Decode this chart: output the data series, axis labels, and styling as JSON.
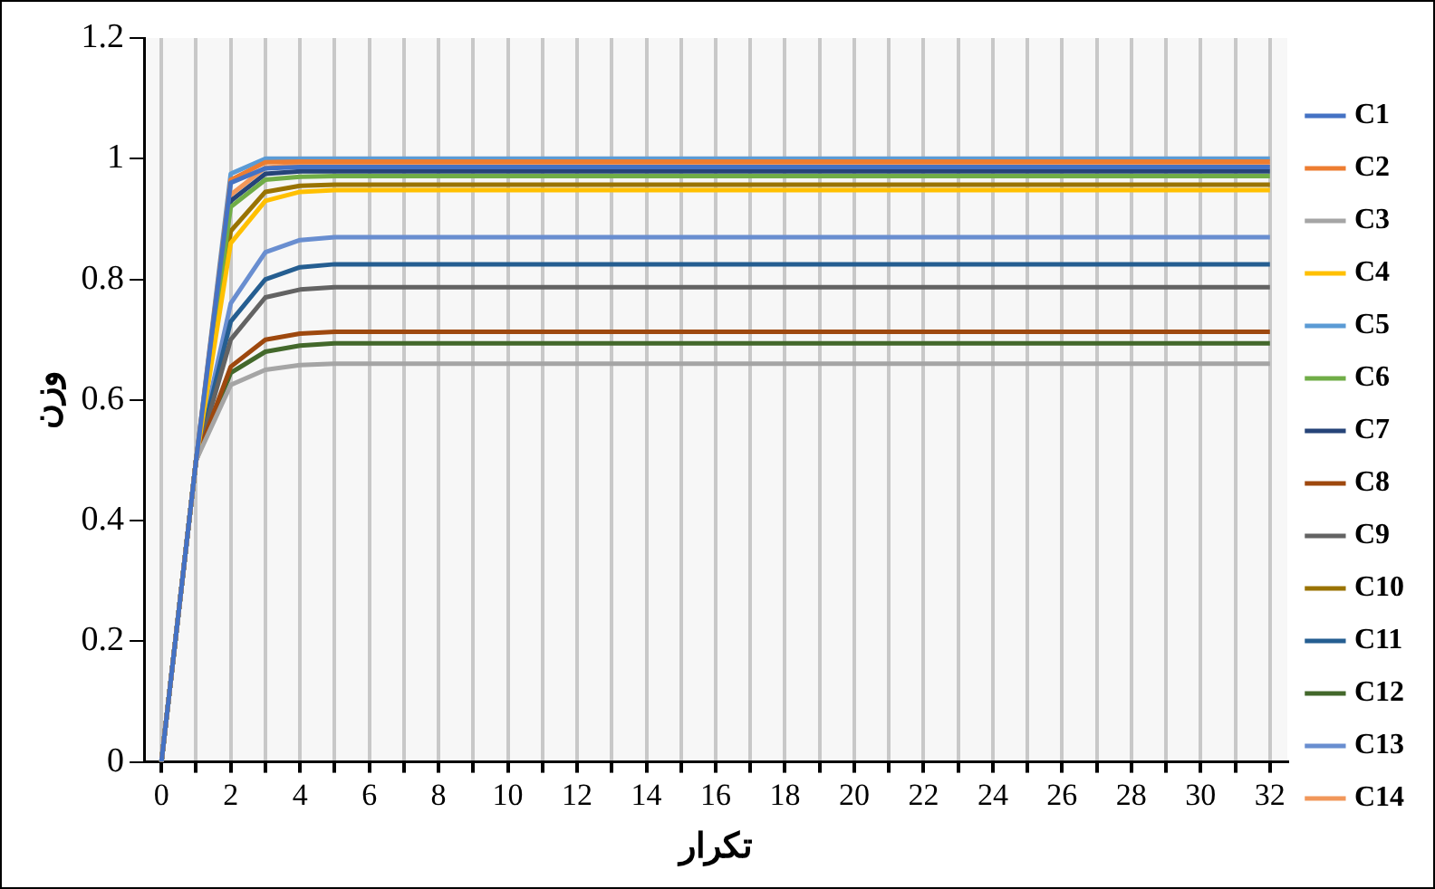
{
  "chart_data": {
    "type": "line",
    "xlabel": "تکرار",
    "ylabel": "وزن",
    "x": [
      0,
      1,
      2,
      3,
      4,
      5,
      6,
      7,
      8,
      9,
      10,
      11,
      12,
      13,
      14,
      15,
      16,
      17,
      18,
      19,
      20,
      21,
      22,
      23,
      24,
      25,
      26,
      27,
      28,
      29,
      30,
      31,
      32
    ],
    "xlim": [
      -0.5,
      32.5
    ],
    "xticks": [
      0,
      {
        "value": 1,
        "label": null
      },
      2,
      {
        "value": 3,
        "label": null
      },
      4,
      {
        "value": 5,
        "label": null
      },
      6,
      {
        "value": 7,
        "label": null
      },
      8,
      {
        "value": 9,
        "label": null
      },
      10,
      {
        "value": 11,
        "label": null
      },
      12,
      {
        "value": 13,
        "label": null
      },
      14,
      {
        "value": 15,
        "label": null
      },
      16,
      {
        "value": 17,
        "label": null
      },
      18,
      {
        "value": 19,
        "label": null
      },
      20,
      {
        "value": 21,
        "label": null
      },
      22,
      {
        "value": 23,
        "label": null
      },
      24,
      {
        "value": 25,
        "label": null
      },
      26,
      {
        "value": 27,
        "label": null
      },
      28,
      {
        "value": 29,
        "label": null
      },
      30,
      {
        "value": 31,
        "label": null
      },
      32
    ],
    "ylim": [
      0,
      1.2
    ],
    "yticks": [
      0,
      0.2,
      0.4,
      0.6,
      0.8,
      1,
      1.2
    ],
    "grid": "x",
    "legend": "right",
    "marker": "none",
    "line_style": "solid",
    "series": [
      {
        "name": "C1",
        "color": "#4472c4",
        "values": [
          0,
          0.5,
          0.96,
          0.984,
          0.986,
          0.986,
          0.986,
          0.986,
          0.986,
          0.986,
          0.986,
          0.986,
          0.986,
          0.986,
          0.986,
          0.986,
          0.986,
          0.986,
          0.986,
          0.986,
          0.986,
          0.986,
          0.986,
          0.986,
          0.986,
          0.986,
          0.986,
          0.986,
          0.986,
          0.986,
          0.986,
          0.986,
          0.986
        ]
      },
      {
        "name": "C2",
        "color": "#ed7d31",
        "values": [
          0,
          0.5,
          0.965,
          0.994,
          0.995,
          0.995,
          0.995,
          0.995,
          0.995,
          0.995,
          0.995,
          0.995,
          0.995,
          0.995,
          0.995,
          0.995,
          0.995,
          0.995,
          0.995,
          0.995,
          0.995,
          0.995,
          0.995,
          0.995,
          0.995,
          0.995,
          0.995,
          0.995,
          0.995,
          0.995,
          0.995,
          0.995,
          0.995
        ]
      },
      {
        "name": "C3",
        "color": "#a5a5a5",
        "values": [
          0,
          0.5,
          0.625,
          0.65,
          0.658,
          0.66,
          0.66,
          0.66,
          0.66,
          0.66,
          0.66,
          0.66,
          0.66,
          0.66,
          0.66,
          0.66,
          0.66,
          0.66,
          0.66,
          0.66,
          0.66,
          0.66,
          0.66,
          0.66,
          0.66,
          0.66,
          0.66,
          0.66,
          0.66,
          0.66,
          0.66,
          0.66,
          0.66
        ]
      },
      {
        "name": "C4",
        "color": "#ffc000",
        "values": [
          0,
          0.5,
          0.86,
          0.93,
          0.945,
          0.948,
          0.948,
          0.948,
          0.948,
          0.948,
          0.948,
          0.948,
          0.948,
          0.948,
          0.948,
          0.948,
          0.948,
          0.948,
          0.948,
          0.948,
          0.948,
          0.948,
          0.948,
          0.948,
          0.948,
          0.948,
          0.948,
          0.948,
          0.948,
          0.948,
          0.948,
          0.948,
          0.948
        ]
      },
      {
        "name": "C5",
        "color": "#5b9bd5",
        "values": [
          0,
          0.5,
          0.975,
          1,
          1,
          1,
          1,
          1,
          1,
          1,
          1,
          1,
          1,
          1,
          1,
          1,
          1,
          1,
          1,
          1,
          1,
          1,
          1,
          1,
          1,
          1,
          1,
          1,
          1,
          1,
          1,
          1,
          1
        ]
      },
      {
        "name": "C6",
        "color": "#70ad47",
        "values": [
          0,
          0.5,
          0.92,
          0.965,
          0.97,
          0.971,
          0.971,
          0.971,
          0.971,
          0.971,
          0.971,
          0.971,
          0.971,
          0.971,
          0.971,
          0.971,
          0.971,
          0.971,
          0.971,
          0.971,
          0.971,
          0.971,
          0.971,
          0.971,
          0.971,
          0.971,
          0.971,
          0.971,
          0.971,
          0.971,
          0.971,
          0.971,
          0.971
        ]
      },
      {
        "name": "C7",
        "color": "#264478",
        "values": [
          0,
          0.5,
          0.93,
          0.975,
          0.979,
          0.979,
          0.979,
          0.979,
          0.979,
          0.979,
          0.979,
          0.979,
          0.979,
          0.979,
          0.979,
          0.979,
          0.979,
          0.979,
          0.979,
          0.979,
          0.979,
          0.979,
          0.979,
          0.979,
          0.979,
          0.979,
          0.979,
          0.979,
          0.979,
          0.979,
          0.979,
          0.979,
          0.979
        ]
      },
      {
        "name": "C8",
        "color": "#9e480e",
        "values": [
          0,
          0.5,
          0.655,
          0.7,
          0.71,
          0.713,
          0.713,
          0.713,
          0.713,
          0.713,
          0.713,
          0.713,
          0.713,
          0.713,
          0.713,
          0.713,
          0.713,
          0.713,
          0.713,
          0.713,
          0.713,
          0.713,
          0.713,
          0.713,
          0.713,
          0.713,
          0.713,
          0.713,
          0.713,
          0.713,
          0.713,
          0.713,
          0.713
        ]
      },
      {
        "name": "C9",
        "color": "#636363",
        "values": [
          0,
          0.5,
          0.7,
          0.77,
          0.783,
          0.787,
          0.787,
          0.787,
          0.787,
          0.787,
          0.787,
          0.787,
          0.787,
          0.787,
          0.787,
          0.787,
          0.787,
          0.787,
          0.787,
          0.787,
          0.787,
          0.787,
          0.787,
          0.787,
          0.787,
          0.787,
          0.787,
          0.787,
          0.787,
          0.787,
          0.787,
          0.787,
          0.787
        ]
      },
      {
        "name": "C10",
        "color": "#997300",
        "values": [
          0,
          0.5,
          0.88,
          0.945,
          0.955,
          0.957,
          0.957,
          0.957,
          0.957,
          0.957,
          0.957,
          0.957,
          0.957,
          0.957,
          0.957,
          0.957,
          0.957,
          0.957,
          0.957,
          0.957,
          0.957,
          0.957,
          0.957,
          0.957,
          0.957,
          0.957,
          0.957,
          0.957,
          0.957,
          0.957,
          0.957,
          0.957,
          0.957
        ]
      },
      {
        "name": "C11",
        "color": "#255e91",
        "values": [
          0,
          0.5,
          0.73,
          0.8,
          0.82,
          0.825,
          0.825,
          0.825,
          0.825,
          0.825,
          0.825,
          0.825,
          0.825,
          0.825,
          0.825,
          0.825,
          0.825,
          0.825,
          0.825,
          0.825,
          0.825,
          0.825,
          0.825,
          0.825,
          0.825,
          0.825,
          0.825,
          0.825,
          0.825,
          0.825,
          0.825,
          0.825,
          0.825
        ]
      },
      {
        "name": "C12",
        "color": "#43682b",
        "values": [
          0,
          0.5,
          0.645,
          0.68,
          0.69,
          0.694,
          0.694,
          0.694,
          0.694,
          0.694,
          0.694,
          0.694,
          0.694,
          0.694,
          0.694,
          0.694,
          0.694,
          0.694,
          0.694,
          0.694,
          0.694,
          0.694,
          0.694,
          0.694,
          0.694,
          0.694,
          0.694,
          0.694,
          0.694,
          0.694,
          0.694,
          0.694,
          0.694
        ]
      },
      {
        "name": "C13",
        "color": "#698ed0",
        "values": [
          0,
          0.5,
          0.76,
          0.845,
          0.865,
          0.87,
          0.87,
          0.87,
          0.87,
          0.87,
          0.87,
          0.87,
          0.87,
          0.87,
          0.87,
          0.87,
          0.87,
          0.87,
          0.87,
          0.87,
          0.87,
          0.87,
          0.87,
          0.87,
          0.87,
          0.87,
          0.87,
          0.87,
          0.87,
          0.87,
          0.87,
          0.87,
          0.87
        ]
      },
      {
        "name": "C14",
        "color": "#f1975a",
        "values": [
          0,
          0.5,
          0.94,
          0.985,
          0.99,
          0.99,
          0.99,
          0.99,
          0.99,
          0.99,
          0.99,
          0.99,
          0.99,
          0.99,
          0.99,
          0.99,
          0.99,
          0.99,
          0.99,
          0.99,
          0.99,
          0.99,
          0.99,
          0.99,
          0.99,
          0.99,
          0.99,
          0.99,
          0.99,
          0.99,
          0.99,
          0.99,
          0.99
        ]
      }
    ]
  }
}
